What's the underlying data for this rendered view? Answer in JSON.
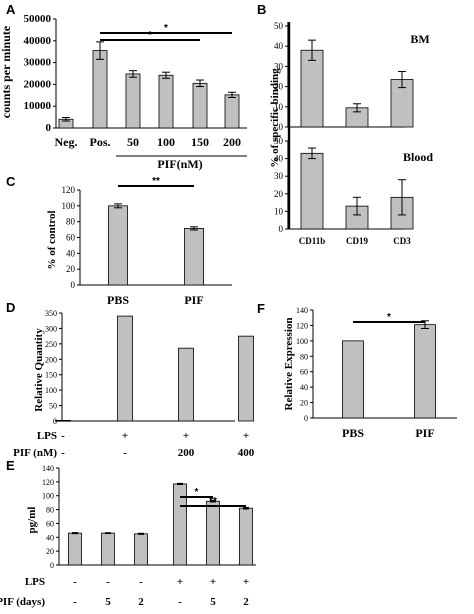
{
  "chart_data": [
    {
      "id": "A",
      "type": "bar",
      "panel_label": "A",
      "ylabel": "counts per minute",
      "xlabel": "PIF(nM)",
      "categories": [
        "Neg.",
        "Pos.",
        "50",
        "100",
        "150",
        "200"
      ],
      "values": [
        4000,
        35500,
        24800,
        24200,
        20500,
        15200
      ],
      "errors": [
        800,
        4000,
        1500,
        1400,
        1500,
        1200
      ],
      "ylim": [
        0,
        50000
      ],
      "yticks": [
        "0",
        "10000",
        "20000",
        "30000",
        "40000",
        "50000"
      ],
      "significance": [
        {
          "from": 1,
          "to": 5,
          "label": "*"
        },
        {
          "from": 1,
          "to": 4,
          "label": "*"
        }
      ]
    },
    {
      "id": "B_top",
      "type": "bar",
      "panel_label": "B",
      "ylabel": "% of specific binding",
      "annotation": "BM",
      "categories": [
        "CD11b",
        "CD19",
        "CD3"
      ],
      "values": [
        38,
        9.5,
        23.5
      ],
      "errors": [
        5,
        2,
        4
      ],
      "ylim": [
        0,
        50
      ],
      "yticks": [
        "0",
        "10",
        "20",
        "30",
        "40",
        "50"
      ]
    },
    {
      "id": "B_bottom",
      "type": "bar",
      "annotation": "Blood",
      "categories": [
        "CD11b",
        "CD19",
        "CD3"
      ],
      "values": [
        43,
        13,
        18
      ],
      "errors": [
        3,
        5,
        10
      ],
      "ylim": [
        0,
        50
      ],
      "yticks": [
        "0",
        "10",
        "20",
        "30",
        "40",
        "50"
      ]
    },
    {
      "id": "C",
      "type": "bar",
      "panel_label": "C",
      "ylabel": "% of control",
      "categories": [
        "PBS",
        "PIF"
      ],
      "values": [
        100,
        71.5
      ],
      "errors": [
        2.5,
        2
      ],
      "ylim": [
        0,
        120
      ],
      "yticks": [
        "0",
        "20",
        "40",
        "60",
        "80",
        "100",
        "120"
      ],
      "significance": [
        {
          "from": 0,
          "to": 1,
          "label": "**"
        }
      ]
    },
    {
      "id": "D",
      "type": "bar",
      "panel_label": "D",
      "ylabel": "Relative Quantity",
      "row_labels": [
        "LPS",
        "PIF (nM)"
      ],
      "rows": [
        [
          "-",
          "+",
          "+",
          "+"
        ],
        [
          "-",
          "-",
          "200",
          "400"
        ]
      ],
      "values": [
        2,
        340,
        236,
        275
      ],
      "ylim": [
        0,
        350
      ],
      "yticks": [
        "0",
        "50",
        "100",
        "150",
        "200",
        "250",
        "300",
        "350"
      ]
    },
    {
      "id": "E",
      "type": "bar",
      "panel_label": "E",
      "ylabel": "pg/ml",
      "row_labels": [
        "LPS",
        "PIF (days)"
      ],
      "rows": [
        [
          "-",
          "-",
          "-",
          "+",
          "+",
          "+"
        ],
        [
          "-",
          "5",
          "2",
          "-",
          "5",
          "2"
        ]
      ],
      "values": [
        46,
        46,
        45,
        117,
        92,
        82
      ],
      "errors": [
        0.8,
        0.6,
        0.8,
        0.8,
        1,
        1.2
      ],
      "ylim": [
        0,
        140
      ],
      "yticks": [
        "0",
        "20",
        "40",
        "60",
        "80",
        "100",
        "120",
        "140"
      ],
      "significance": [
        {
          "from": 3,
          "to": 4,
          "label": "*"
        },
        {
          "from": 3,
          "to": 5,
          "label": "**"
        }
      ]
    },
    {
      "id": "F",
      "type": "bar",
      "panel_label": "F",
      "ylabel": "Relative Expression",
      "categories": [
        "PBS",
        "PIF"
      ],
      "values": [
        100,
        121
      ],
      "errors": [
        0,
        5
      ],
      "ylim": [
        0,
        140
      ],
      "yticks": [
        "0",
        "20",
        "40",
        "60",
        "80",
        "100",
        "120",
        "140"
      ],
      "significance": [
        {
          "from": 0,
          "to": 1,
          "label": "*"
        }
      ]
    }
  ],
  "colors": {
    "bar_fill": "#c0c0c0",
    "bar_stroke": "#000000",
    "axis": "#000000"
  }
}
